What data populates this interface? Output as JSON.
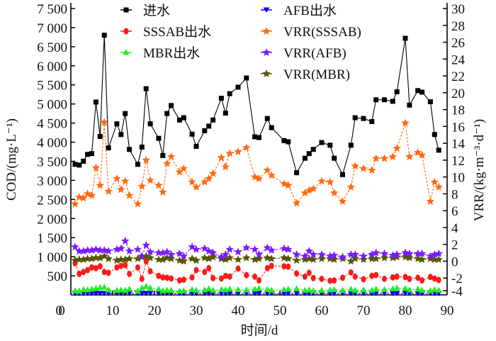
{
  "chart_data": {
    "type": "line",
    "title": "",
    "xlabel": "时间/d",
    "ylabel_left": "COD/(mg·L⁻¹)",
    "ylabel_right": "VRR/(kg·m⁻³·d⁻¹)",
    "xlim": [
      0,
      90
    ],
    "ylim_left": [
      0,
      7500
    ],
    "ylim_right": [
      -4,
      30
    ],
    "x_ticks": [
      "0",
      "10",
      "20",
      "30",
      "40",
      "50",
      "60",
      "70",
      "80",
      "90"
    ],
    "y_ticks_left": [
      "0",
      "500",
      "1 000",
      "1 500",
      "2 000",
      "2 500",
      "3 000",
      "3 500",
      "4 000",
      "4 500",
      "5 000",
      "5 500",
      "6 000",
      "6 500",
      "7 000",
      "7 500"
    ],
    "y_ticks_right": [
      "-4",
      "-2",
      "0",
      "2",
      "4",
      "6",
      "8",
      "10",
      "12",
      "14",
      "16",
      "18",
      "20",
      "22",
      "24",
      "26",
      "28",
      "30"
    ],
    "grid": false,
    "legend_position": "top",
    "x": [
      1,
      2,
      3,
      4,
      5,
      6,
      7,
      8,
      9,
      11,
      12,
      13,
      14,
      16,
      17,
      18,
      19,
      21,
      22,
      23,
      24,
      26,
      27,
      29,
      30,
      32,
      33,
      34,
      36,
      37,
      38,
      40,
      42,
      44,
      45,
      47,
      48,
      51,
      52,
      54,
      56,
      57,
      58,
      60,
      62,
      63,
      65,
      67,
      68,
      70,
      72,
      73,
      75,
      77,
      78,
      80,
      81,
      83,
      84,
      86,
      87,
      88
    ],
    "series": [
      {
        "name": "进水",
        "axis": "left",
        "color": "#000000",
        "marker": "square",
        "values": [
          3420,
          3400,
          3500,
          3680,
          3700,
          5050,
          4150,
          6800,
          3850,
          4480,
          4200,
          4750,
          3810,
          3420,
          3870,
          5400,
          4480,
          4100,
          3650,
          4750,
          4960,
          4580,
          4640,
          4210,
          3890,
          4300,
          4420,
          4580,
          5150,
          4760,
          5270,
          5440,
          5680,
          4140,
          4120,
          4620,
          4380,
          4040,
          4010,
          3200,
          3580,
          3700,
          3810,
          3990,
          3920,
          3580,
          3150,
          3920,
          4640,
          4620,
          4540,
          5110,
          5110,
          5070,
          5320,
          6720,
          4970,
          5350,
          5310,
          5060,
          4200,
          3790
        ]
      },
      {
        "name": "SSSAB出水",
        "axis": "left",
        "color": "#ff1a1a",
        "marker": "circle",
        "values": [
          830,
          550,
          600,
          650,
          720,
          700,
          750,
          600,
          580,
          720,
          760,
          780,
          550,
          720,
          420,
          880,
          620,
          500,
          460,
          450,
          430,
          380,
          400,
          460,
          650,
          600,
          700,
          440,
          430,
          500,
          480,
          690,
          520,
          480,
          380,
          700,
          760,
          750,
          740,
          560,
          480,
          580,
          440,
          420,
          370,
          380,
          450,
          590,
          480,
          410,
          500,
          520,
          420,
          460,
          480,
          470,
          420,
          450,
          380,
          470,
          430,
          390
        ]
      },
      {
        "name": "MBR出水",
        "axis": "left",
        "color": "#22ee22",
        "marker": "triangle-up",
        "values": [
          110,
          100,
          140,
          130,
          150,
          170,
          190,
          200,
          130,
          120,
          130,
          120,
          150,
          100,
          180,
          220,
          180,
          150,
          110,
          120,
          120,
          100,
          110,
          140,
          120,
          130,
          160,
          120,
          140,
          130,
          150,
          140,
          130,
          150,
          170,
          140,
          120,
          140,
          150,
          160,
          120,
          130,
          110,
          120,
          130,
          140,
          120,
          150,
          120,
          130,
          120,
          150,
          140,
          160,
          180,
          170,
          130,
          150,
          120,
          110,
          140,
          120
        ]
      },
      {
        "name": "AFB出水",
        "axis": "left",
        "color": "#0000ee",
        "marker": "triangle-down",
        "values": [
          40,
          40,
          40,
          40,
          40,
          40,
          40,
          40,
          40,
          40,
          40,
          40,
          40,
          40,
          40,
          40,
          40,
          40,
          40,
          40,
          40,
          40,
          40,
          40,
          40,
          40,
          40,
          40,
          40,
          40,
          40,
          40,
          40,
          40,
          40,
          40,
          40,
          40,
          40,
          40,
          40,
          40,
          40,
          40,
          40,
          40,
          40,
          40,
          40,
          40,
          40,
          40,
          40,
          40,
          40,
          40,
          40,
          40,
          40,
          40,
          40,
          40
        ]
      },
      {
        "name": "VRR(SSSAB)",
        "axis": "right",
        "color": "#ff6a10",
        "marker": "star",
        "values": [
          6.8,
          7.6,
          7.5,
          8.0,
          7.8,
          11.1,
          9.0,
          16.5,
          8.3,
          9.8,
          8.5,
          9.5,
          7.8,
          6.8,
          8.9,
          12.0,
          9.6,
          9.0,
          8.2,
          11.6,
          12.4,
          10.6,
          11.0,
          9.4,
          8.8,
          9.4,
          9.8,
          10.4,
          12.3,
          11.2,
          12.8,
          13.0,
          13.5,
          10.0,
          9.8,
          10.8,
          10.2,
          9.2,
          9.0,
          6.9,
          8.1,
          8.4,
          8.6,
          9.5,
          9.4,
          8.1,
          7.1,
          8.8,
          11.3,
          11.0,
          10.8,
          12.2,
          12.2,
          12.4,
          13.4,
          16.4,
          12.4,
          12.9,
          12.6,
          7.1,
          9.4,
          8.8
        ]
      },
      {
        "name": "VRR(AFB)",
        "axis": "right",
        "color": "#7a1aff",
        "marker": "star",
        "values": [
          1.7,
          1.2,
          1.2,
          1.3,
          1.3,
          1.4,
          1.3,
          1.3,
          1.2,
          1.4,
          1.5,
          2.4,
          1.2,
          1.4,
          0.6,
          1.9,
          1.1,
          1.0,
          1.0,
          1.1,
          0.8,
          0.9,
          0.6,
          1.7,
          1.4,
          1.5,
          1.2,
          1.0,
          0.5,
          0.8,
          1.4,
          1.1,
          1.6,
          1.4,
          0.8,
          1.6,
          1.3,
          1.5,
          1.4,
          0.8,
          0.6,
          1.2,
          0.8,
          0.8,
          0.6,
          0.7,
          0.5,
          0.8,
          0.8,
          0.6,
          0.8,
          1.0,
          0.9,
          0.7,
          0.8,
          1.0,
          0.9,
          0.9,
          0.9,
          0.6,
          0.8,
          0.9
        ]
      },
      {
        "name": "VRR(MBR)",
        "axis": "right",
        "color": "#555500",
        "marker": "star",
        "values": [
          0.1,
          0.2,
          0.2,
          0.3,
          0.3,
          0.4,
          0.4,
          0.6,
          0.3,
          0.1,
          0.2,
          0.2,
          0.3,
          0.3,
          0.5,
          0.6,
          0.4,
          0.2,
          0.2,
          0.4,
          0.3,
          0.1,
          0.0,
          0.3,
          0.1,
          0.4,
          0.3,
          0.5,
          0.3,
          0.2,
          0.4,
          0.2,
          0.4,
          0.2,
          0.3,
          0.4,
          0.3,
          0.4,
          0.3,
          0.1,
          0.2,
          0.3,
          0.2,
          0.3,
          0.3,
          0.2,
          0.3,
          0.0,
          0.3,
          0.2,
          0.3,
          0.3,
          0.4,
          0.4,
          0.5,
          0.5,
          0.4,
          0.3,
          0.2,
          0.3,
          0.2,
          0.2
        ]
      }
    ]
  }
}
